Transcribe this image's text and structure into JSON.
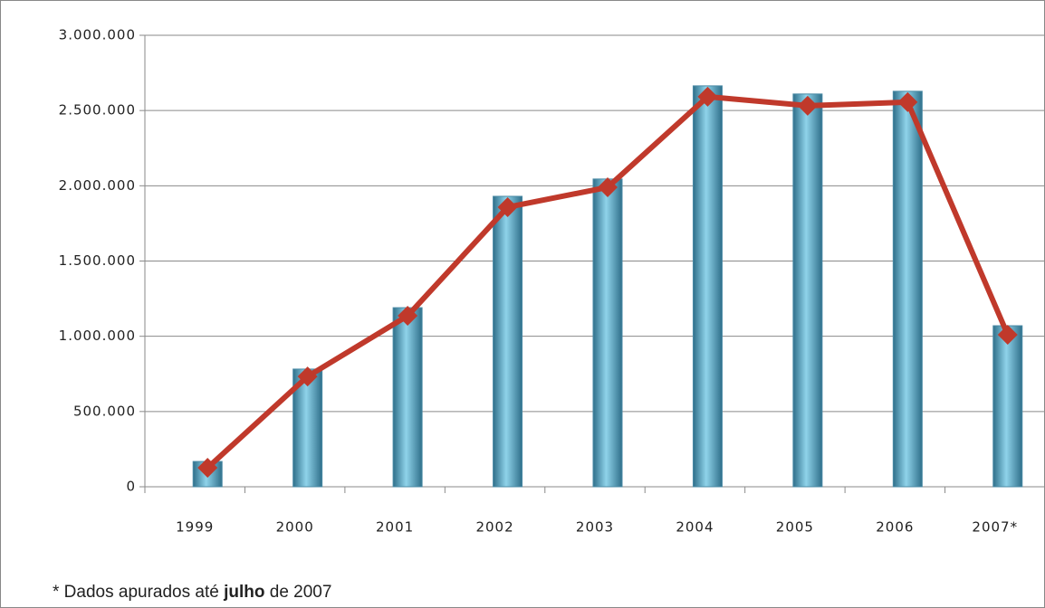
{
  "chart_data": {
    "type": "bar_line",
    "categories": [
      "1999",
      "2000",
      "2001",
      "2002",
      "2003",
      "2004",
      "2005",
      "2006",
      "2007*"
    ],
    "series": [
      {
        "type": "bar",
        "color": "#7ec8e0",
        "values": [
          168000,
          782000,
          1190000,
          1930000,
          2045000,
          2664000,
          2610000,
          2628000,
          1070000
        ]
      },
      {
        "type": "line",
        "color": "#c0392b",
        "values": [
          126000,
          733000,
          1136000,
          1858000,
          1990000,
          2592000,
          2532000,
          2556000,
          1010000
        ]
      }
    ],
    "ylim": [
      0,
      3000000
    ],
    "yticks": [
      0,
      {
        "value": 500000,
        "label": "500.000"
      },
      {
        "value": 1000000,
        "label": "1.000.000"
      },
      {
        "value": 1500000,
        "label": "1.500.000"
      },
      {
        "value": 2000000,
        "label": "2.000.000"
      },
      {
        "value": 2500000,
        "label": "2.500.000"
      },
      {
        "value": 3000000,
        "label": "3.000.000"
      }
    ],
    "grid": true,
    "annotation": {
      "before": "* Dados apurados até",
      "bold": "julho",
      "after": "de 2007"
    }
  }
}
